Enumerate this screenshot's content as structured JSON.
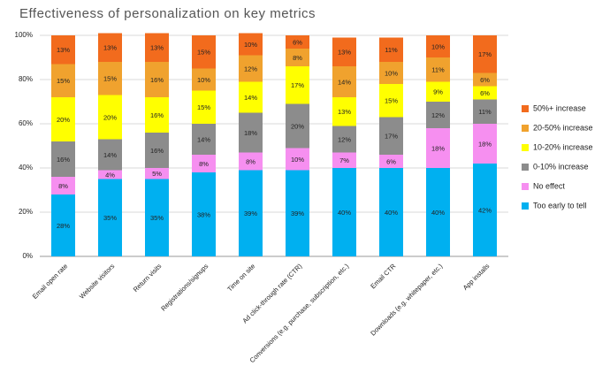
{
  "chart_data": {
    "type": "stacked_bar",
    "title": "Effectiveness of personalization on key metrics",
    "categories": [
      "Email open rate",
      "Website visitors",
      "Return visits",
      "Registrations/signups",
      "Time on site",
      "Ad click-through rate (CTR)",
      "Conversions (e.g. purchase, subscription, etc.)",
      "Email CTR",
      "Downloads (e.g. whitepaper, etc.)",
      "App installs"
    ],
    "series": [
      {
        "name": "Too early to tell",
        "color": "#00b0f0",
        "values": [
          28,
          35,
          35,
          38,
          39,
          39,
          40,
          40,
          40,
          42
        ],
        "value_labels": [
          "28%",
          "35%",
          "35%",
          "38%",
          "39%",
          "39%",
          "40%",
          "40%",
          "40%",
          "42%"
        ]
      },
      {
        "name": "No effect",
        "color": "#f68ff0",
        "values": [
          8,
          4,
          5,
          8,
          8,
          10,
          7,
          6,
          18,
          18
        ],
        "value_labels": [
          "8%",
          "4%",
          "5%",
          "8%",
          "8%",
          "10%",
          "7%",
          "6%",
          "18%",
          "18%"
        ]
      },
      {
        "name": "0-10% increase",
        "color": "#8c8c8c",
        "values": [
          16,
          14,
          16,
          14,
          18,
          20,
          12,
          17,
          12,
          11
        ],
        "value_labels": [
          "16%",
          "14%",
          "16%",
          "14%",
          "18%",
          "20%",
          "12%",
          "17%",
          "12%",
          "11%"
        ]
      },
      {
        "name": "10-20% increase",
        "color": "#ffff00",
        "values": [
          20,
          20,
          16,
          15,
          14,
          17,
          13,
          15,
          9,
          6
        ],
        "value_labels": [
          "20%",
          "20%",
          "16%",
          "15%",
          "14%",
          "17%",
          "13%",
          "15%",
          "9%",
          "6%"
        ]
      },
      {
        "name": "20-50% increase",
        "color": "#f0a22e",
        "values": [
          15,
          15,
          16,
          10,
          12,
          8,
          14,
          10,
          11,
          6
        ],
        "value_labels": [
          "15%",
          "15%",
          "16%",
          "10%",
          "12%",
          "8%",
          "14%",
          "10%",
          "11%",
          "6%"
        ]
      },
      {
        "name": "50%+ increase",
        "color": "#f26b1d",
        "values": [
          13,
          13,
          13,
          15,
          10,
          6,
          13,
          11,
          10,
          17
        ],
        "value_labels": [
          "13%",
          "13%",
          "13%",
          "15%",
          "10%",
          "6%",
          "13%",
          "11%",
          "10%",
          "17%"
        ]
      }
    ],
    "ylim": [
      0,
      100
    ],
    "yticks": [
      {
        "value": 0,
        "label": "0%"
      },
      {
        "value": 20,
        "label": "20%"
      },
      {
        "value": 40,
        "label": "40%"
      },
      {
        "value": 60,
        "label": "60%"
      },
      {
        "value": 80,
        "label": "80%"
      },
      {
        "value": 100,
        "label": "100%"
      }
    ],
    "grid": true,
    "legend": "right"
  }
}
